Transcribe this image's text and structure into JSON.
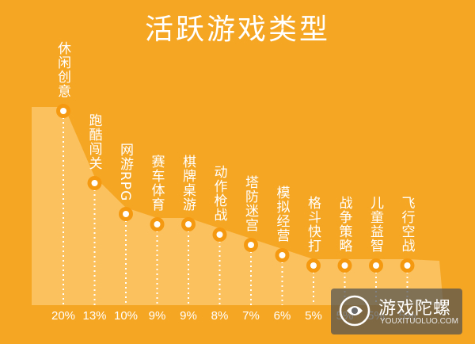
{
  "chart_data": {
    "type": "area",
    "title": "活跃游戏类型",
    "categories": [
      "休闲创意",
      "跑酷闯关",
      "网游RPG",
      "赛车体育",
      "棋牌桌游",
      "动作枪战",
      "塔防迷宫",
      "模拟经营",
      "格斗快打",
      "战争策略",
      "儿童益智",
      "飞行空战"
    ],
    "value_labels": [
      "20%",
      "13%",
      "10%",
      "9%",
      "9%",
      "8%",
      "7%",
      "6%",
      "5%",
      "5%",
      "5%",
      "5%"
    ],
    "values": [
      20,
      13,
      10,
      9,
      9,
      8,
      7,
      6,
      5,
      5,
      5,
      5
    ],
    "ylim": [
      0,
      25
    ],
    "grid": false,
    "legend": "none"
  },
  "watermark": {
    "name_cn": "游戏陀螺",
    "url": "YOUXITUOLUO.COM"
  },
  "colors": {
    "background": "#f5a623",
    "area_fill": "#fbc15e",
    "marker_ring": "#f59a10",
    "marker_center": "#ffffff",
    "text": "#ffffff"
  }
}
